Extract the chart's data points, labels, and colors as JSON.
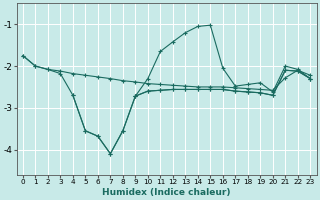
{
  "xlabel": "Humidex (Indice chaleur)",
  "bg_color": "#c8eae8",
  "line_color": "#1a6b60",
  "grid_color": "#ffffff",
  "xlim": [
    -0.5,
    23.5
  ],
  "ylim": [
    -4.6,
    -0.5
  ],
  "yticks": [
    -4,
    -3,
    -2,
    -1
  ],
  "xticks": [
    0,
    1,
    2,
    3,
    4,
    5,
    6,
    7,
    8,
    9,
    10,
    11,
    12,
    13,
    14,
    15,
    16,
    17,
    18,
    19,
    20,
    21,
    22,
    23
  ],
  "series": [
    {
      "x": [
        0,
        1,
        2,
        3,
        4,
        5,
        6,
        7,
        8,
        9,
        10,
        11,
        12,
        13,
        14,
        15,
        16,
        17,
        18,
        19,
        20,
        21,
        22,
        23
      ],
      "y": [
        -1.75,
        -2.0,
        -2.08,
        -2.12,
        -2.18,
        -2.22,
        -2.26,
        -2.3,
        -2.35,
        -2.38,
        -2.42,
        -2.44,
        -2.46,
        -2.48,
        -2.5,
        -2.5,
        -2.5,
        -2.52,
        -2.54,
        -2.56,
        -2.58,
        -2.28,
        -2.1,
        -2.22
      ]
    },
    {
      "x": [
        0,
        1,
        2,
        3,
        4,
        5,
        6,
        7,
        8,
        9,
        10,
        11,
        12,
        13,
        14,
        15,
        16,
        17,
        18,
        19,
        20,
        21,
        22,
        23
      ],
      "y": [
        -1.75,
        -2.0,
        -2.08,
        -2.18,
        -2.7,
        -3.55,
        -3.68,
        -4.1,
        -3.55,
        -2.72,
        -2.3,
        -1.65,
        -1.42,
        -1.2,
        -1.05,
        -1.02,
        -2.05,
        -2.48,
        -2.44,
        -2.4,
        -2.62,
        -2.0,
        -2.08,
        -2.3
      ]
    },
    {
      "x": [
        4,
        5,
        6,
        7,
        8,
        9,
        10,
        11,
        12,
        13,
        14,
        15,
        16,
        17,
        18,
        19,
        20,
        21,
        22,
        23
      ],
      "y": [
        -2.7,
        -3.55,
        -3.68,
        -4.1,
        -3.55,
        -2.72,
        -2.6,
        -2.58,
        -2.56,
        -2.56,
        -2.56,
        -2.56,
        -2.56,
        -2.6,
        -2.62,
        -2.64,
        -2.7,
        -2.1,
        -2.12,
        -2.3
      ]
    },
    {
      "x": [
        9,
        10,
        11,
        12,
        13,
        14,
        15,
        16,
        17,
        18,
        19,
        20,
        21,
        22,
        23
      ],
      "y": [
        -2.72,
        -2.6,
        -2.58,
        -2.56,
        -2.56,
        -2.56,
        -2.56,
        -2.56,
        -2.6,
        -2.62,
        -2.64,
        -2.7,
        -2.1,
        -2.12,
        -2.3
      ]
    }
  ]
}
